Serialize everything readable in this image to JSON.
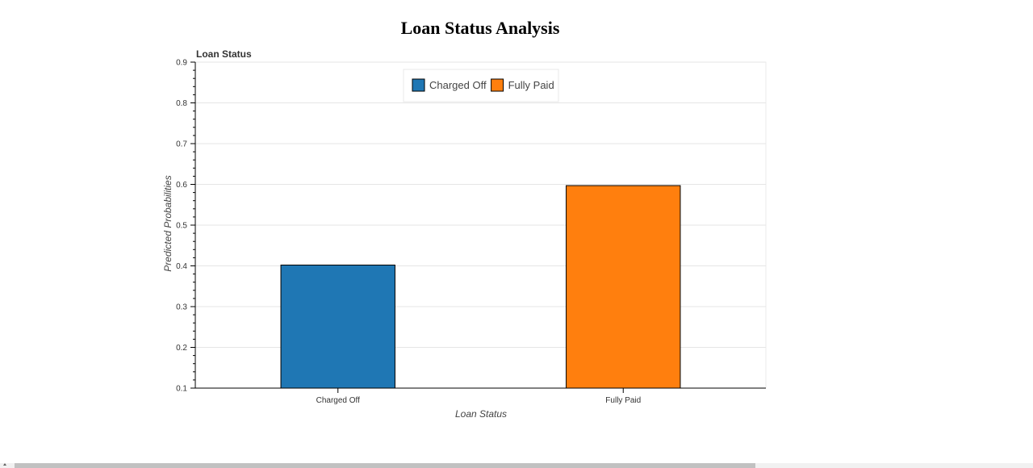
{
  "page": {
    "title": "Loan Status Analysis"
  },
  "chart_data": {
    "type": "bar",
    "title": "Loan Status",
    "categories": [
      "Charged Off",
      "Fully Paid"
    ],
    "values": [
      0.402,
      0.597
    ],
    "colors": [
      "#1f77b4",
      "#ff7f0e"
    ],
    "xlabel": "Loan Status",
    "ylabel": "Predicted Probabilities",
    "ylim": [
      0.1,
      0.9
    ],
    "yticks": [
      "0.1",
      "0.2",
      "0.3",
      "0.4",
      "0.5",
      "0.6",
      "0.7",
      "0.8",
      "0.9"
    ],
    "grid": true,
    "legend": {
      "position": "top-center",
      "entries": [
        "Charged Off",
        "Fully Paid"
      ]
    }
  }
}
